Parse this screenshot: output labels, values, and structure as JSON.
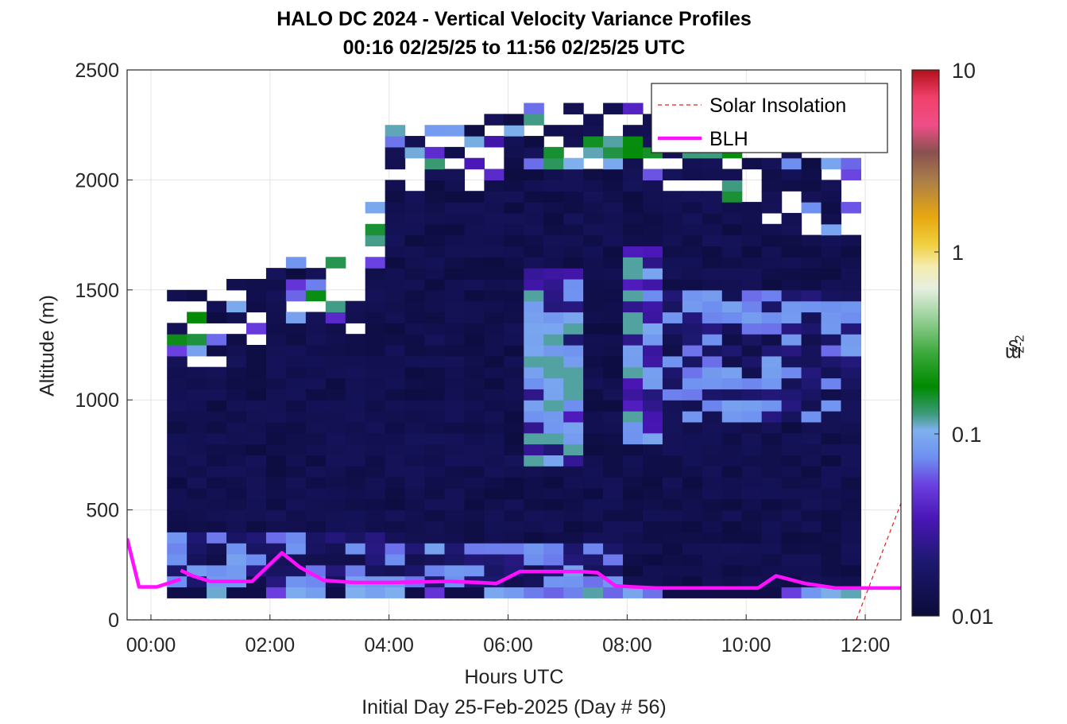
{
  "title_line1": "HALO DC 2024 - Vertical Velocity Variance Profiles",
  "title_line2": "00:16 02/25/25 to 11:56 02/25/25  UTC",
  "colorbar": {
    "label_main": "m",
    "label_sup1": "2",
    "label_mid": "s",
    "label_sup2": "-2",
    "ticks": [
      {
        "value": 0.01,
        "label": "0.01"
      },
      {
        "value": 0.1,
        "label": "0.1"
      },
      {
        "value": 1,
        "label": "1"
      },
      {
        "value": 10,
        "label": "10"
      }
    ],
    "range": [
      0.01,
      10
    ],
    "scale": "log",
    "colors": [
      {
        "at": 0.0,
        "color": "#0b0b3a"
      },
      {
        "at": 0.1,
        "color": "#1d1870"
      },
      {
        "at": 0.18,
        "color": "#4b16b8"
      },
      {
        "at": 0.24,
        "color": "#6a3fe0"
      },
      {
        "at": 0.29,
        "color": "#6e8ff0"
      },
      {
        "at": 0.34,
        "color": "#7fb0ee"
      },
      {
        "at": 0.37,
        "color": "#3c9a7a"
      },
      {
        "at": 0.42,
        "color": "#008a00"
      },
      {
        "at": 0.48,
        "color": "#3aa83a"
      },
      {
        "at": 0.55,
        "color": "#9fd49f"
      },
      {
        "at": 0.6,
        "color": "#e6efe0"
      },
      {
        "at": 0.64,
        "color": "#f4ecb0"
      },
      {
        "at": 0.68,
        "color": "#f0d040"
      },
      {
        "at": 0.73,
        "color": "#e8a810"
      },
      {
        "at": 0.8,
        "color": "#a87c4a"
      },
      {
        "at": 0.85,
        "color": "#8a5050"
      },
      {
        "at": 0.9,
        "color": "#f04e88"
      },
      {
        "at": 0.95,
        "color": "#f0406a"
      },
      {
        "at": 1.0,
        "color": "#b0101a"
      }
    ]
  },
  "chart_data": {
    "type": "heatmap",
    "title": "HALO DC 2024 - Vertical Velocity Variance Profiles",
    "subtitle": "00:16 02/25/25 to 11:56 02/25/25  UTC",
    "xlabel": "Hours UTC",
    "ylabel": "Altitude (m)",
    "footer": "Initial Day 25-Feb-2025 (Day # 56)",
    "xlim": [
      -0.4,
      12.6
    ],
    "ylim": [
      0,
      2500
    ],
    "xticks": [
      {
        "value": 0,
        "label": "00:00"
      },
      {
        "value": 2,
        "label": "02:00"
      },
      {
        "value": 4,
        "label": "04:00"
      },
      {
        "value": 6,
        "label": "06:00"
      },
      {
        "value": 8,
        "label": "08:00"
      },
      {
        "value": 10,
        "label": "10:00"
      },
      {
        "value": 12,
        "label": "12:00"
      }
    ],
    "yticks": [
      {
        "value": 0,
        "label": "0"
      },
      {
        "value": 500,
        "label": "500"
      },
      {
        "value": 1000,
        "label": "1000"
      },
      {
        "value": 1500,
        "label": "1500"
      },
      {
        "value": 2000,
        "label": "2000"
      },
      {
        "value": 2500,
        "label": "2500"
      }
    ],
    "grid": true,
    "color_scale": "log",
    "color_range": [
      0.01,
      10
    ],
    "time_range_hours": [
      0.27,
      11.93
    ],
    "altitude_floor_m": 100,
    "cell_width_hours": 0.333,
    "cell_height_m": 50,
    "blh_hours_default": 1.0,
    "observation_top_profile": [
      {
        "hour": 0.27,
        "alt": 1500
      },
      {
        "hour": 0.93,
        "alt": 1450
      },
      {
        "hour": 1.6,
        "alt": 1550
      },
      {
        "hour": 2.3,
        "alt": 1650
      },
      {
        "hour": 3.3,
        "alt": 1650
      },
      {
        "hour": 3.6,
        "alt": 1500
      },
      {
        "hour": 3.9,
        "alt": 2250
      },
      {
        "hour": 5.6,
        "alt": 2250
      },
      {
        "hour": 6.0,
        "alt": 2300
      },
      {
        "hour": 8.0,
        "alt": 2350
      },
      {
        "hour": 8.9,
        "alt": 2250
      },
      {
        "hour": 11.0,
        "alt": 2100
      },
      {
        "hour": 11.93,
        "alt": 2050
      }
    ],
    "turbulent_regions": [
      {
        "h0": 0.27,
        "h1": 3.9,
        "a0": 100,
        "a1": 400,
        "level": "moderate"
      },
      {
        "h0": 3.9,
        "h1": 8.0,
        "a0": 100,
        "a1": 350,
        "level": "moderate"
      },
      {
        "h0": 6.4,
        "h1": 7.3,
        "a0": 700,
        "a1": 1600,
        "level": "strong"
      },
      {
        "h0": 7.9,
        "h1": 8.6,
        "a0": 800,
        "a1": 1700,
        "level": "strong"
      },
      {
        "h0": 8.6,
        "h1": 11.9,
        "a0": 900,
        "a1": 1500,
        "level": "moderate"
      }
    ],
    "series": [
      {
        "name": "Solar Insolation",
        "type": "line",
        "style": "dashed",
        "color": "#e02020",
        "x": [
          -0.4,
          11.85,
          12.6
        ],
        "y": [
          0,
          0,
          530
        ]
      },
      {
        "name": "BLH",
        "type": "line",
        "style": "solid",
        "color": "#ff10ff",
        "segments": [
          {
            "x": [
              -0.4,
              -0.2,
              0.1,
              0.5
            ],
            "y": [
              370,
              150,
              150,
              185
            ]
          },
          {
            "x": [
              0.5,
              0.7,
              1.0,
              1.2,
              1.7,
              2.2,
              2.5,
              2.9,
              3.4,
              4.0,
              5.0,
              5.5,
              5.8,
              6.2,
              6.4,
              7.2,
              7.5,
              7.8,
              8.1,
              8.5,
              9.0,
              10.0,
              10.2,
              10.5,
              11.0,
              11.5,
              12.0,
              12.6
            ],
            "y": [
              225,
              200,
              175,
              175,
              175,
              305,
              240,
              180,
              170,
              170,
              175,
              170,
              165,
              220,
              220,
              220,
              215,
              155,
              150,
              145,
              145,
              145,
              145,
              200,
              165,
              145,
              145,
              145
            ]
          }
        ]
      }
    ],
    "legend": {
      "placement": "top-right",
      "entries": [
        "Solar Insolation",
        "BLH"
      ]
    }
  }
}
